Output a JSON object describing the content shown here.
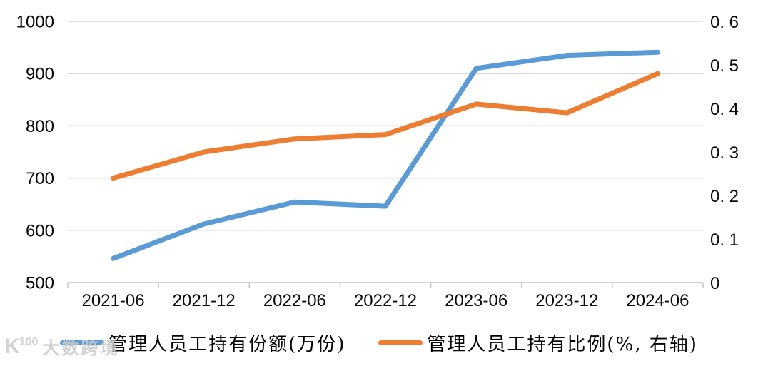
{
  "chart_data": {
    "type": "line",
    "title": "",
    "categories": [
      "2021-06",
      "2021-12",
      "2022-06",
      "2022-12",
      "2023-06",
      "2023-12",
      "2024-06"
    ],
    "series": [
      {
        "name": "管理人员工持有份额(万份)",
        "axis": "left",
        "color": "#5B9BD5",
        "values": [
          546,
          612,
          654,
          646,
          910,
          935,
          941
        ]
      },
      {
        "name": "管理人员工持有比例(%, 右轴)",
        "axis": "right",
        "color": "#ED7D31",
        "values": [
          0.24,
          0.3,
          0.33,
          0.34,
          0.41,
          0.39,
          0.48
        ]
      }
    ],
    "left_axis": {
      "min": 500,
      "max": 1000,
      "ticks": [
        1000,
        900,
        800,
        700,
        600,
        500
      ],
      "tick_labels": [
        "1000",
        "900",
        "800",
        "700",
        "600",
        "500"
      ]
    },
    "right_axis": {
      "min": 0,
      "max": 0.6,
      "ticks": [
        0.6,
        0.5,
        0.4,
        0.3,
        0.2,
        0.1,
        0
      ],
      "tick_labels": [
        "0. 6",
        "0. 5",
        "0. 4",
        "0. 3",
        "0. 2",
        "0. 1",
        "0"
      ]
    },
    "grid": true,
    "legend_position": "bottom",
    "gridline_color": "#D9D9D9",
    "axis_color": "#C6C6C6",
    "text_color": "#0a0a0a",
    "line_width": 7
  },
  "watermark": {
    "logo": "K",
    "logo_sup": "100",
    "text": "大数跨境"
  }
}
